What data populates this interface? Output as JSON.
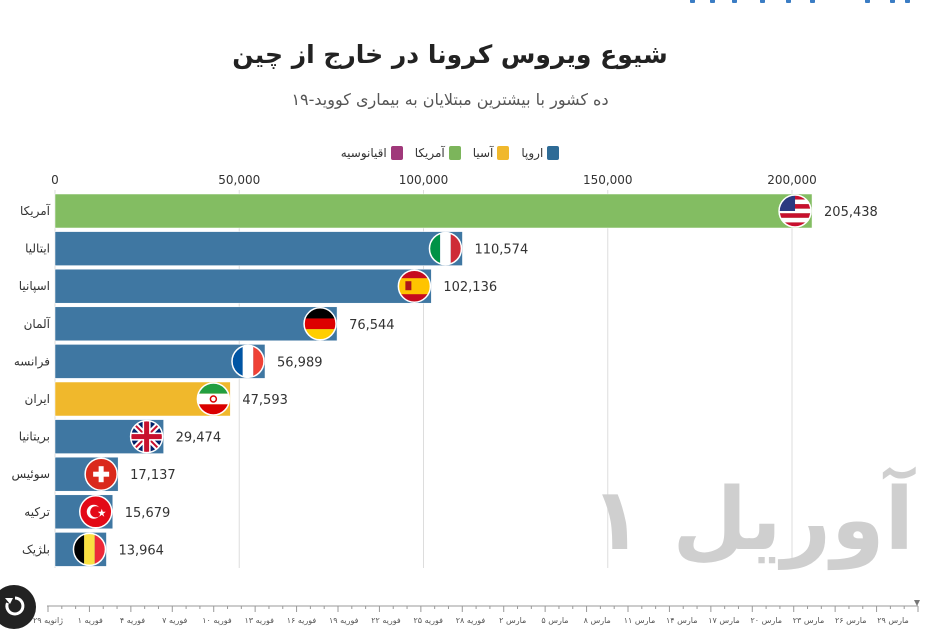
{
  "title": "شیوع ویروس کرونا در خارج از چین",
  "subtitle": "ده کشور با بیشترین مبتلایان به بیماری کووید-۱۹",
  "watermark": "آوریل ۱",
  "legend": [
    {
      "label": "اروپا",
      "color": "#2e6b96"
    },
    {
      "label": "آسیا",
      "color": "#f0b82c"
    },
    {
      "label": "آمریکا",
      "color": "#7cb55b"
    },
    {
      "label": "اقیانوسیه",
      "color": "#a0387a"
    }
  ],
  "colors": {
    "europe": "#3f77a2",
    "asia": "#f0b82c",
    "america": "#83bd62",
    "oceania": "#a0387a"
  },
  "chart_data": {
    "type": "bar",
    "orientation": "horizontal",
    "xlim": [
      0,
      215000
    ],
    "xticks": [
      0,
      50000,
      100000,
      150000,
      200000
    ],
    "xtick_labels": [
      "0",
      "50,000",
      "100,000",
      "150,000",
      "200,000"
    ],
    "grid": true,
    "legend_position": "top",
    "categories": [
      "آمریکا",
      "ایتالیا",
      "اسپانیا",
      "آلمان",
      "فرانسه",
      "ایران",
      "بریتانیا",
      "سوئیس",
      "ترکیه",
      "بلژیک"
    ],
    "values": [
      205438,
      110574,
      102136,
      76544,
      56989,
      47593,
      29474,
      17137,
      15679,
      13964
    ],
    "value_labels": [
      "205,438",
      "110,574",
      "102,136",
      "76,544",
      "56,989",
      "47,593",
      "29,474",
      "17,137",
      "15,679",
      "13,964"
    ],
    "regions": [
      "america",
      "europe",
      "europe",
      "europe",
      "europe",
      "asia",
      "europe",
      "europe",
      "europe",
      "europe"
    ],
    "flags": [
      "usa-flag-icon",
      "italy-flag-icon",
      "spain-flag-icon",
      "germany-flag-icon",
      "france-flag-icon",
      "iran-flag-icon",
      "uk-flag-icon",
      "switzerland-flag-icon",
      "turkey-flag-icon",
      "belgium-flag-icon"
    ]
  },
  "timeline": {
    "labels": [
      "مارس ۲۹",
      "مارس ۲۶",
      "مارس ۲۳",
      "مارس ۲۰",
      "مارس ۱۷",
      "مارس ۱۴",
      "مارس ۱۱",
      "مارس ۸",
      "مارس ۵",
      "مارس ۲",
      "فوریه ۲۸",
      "فوریه ۲۵",
      "فوریه ۲۲",
      "فوریه ۱۹",
      "فوریه ۱۶",
      "فوریه ۱۳",
      "فوریه ۱۰",
      "فوریه ۷",
      "فوریه ۴",
      "فوریه ۱",
      "ژانویه ۲۹"
    ]
  }
}
